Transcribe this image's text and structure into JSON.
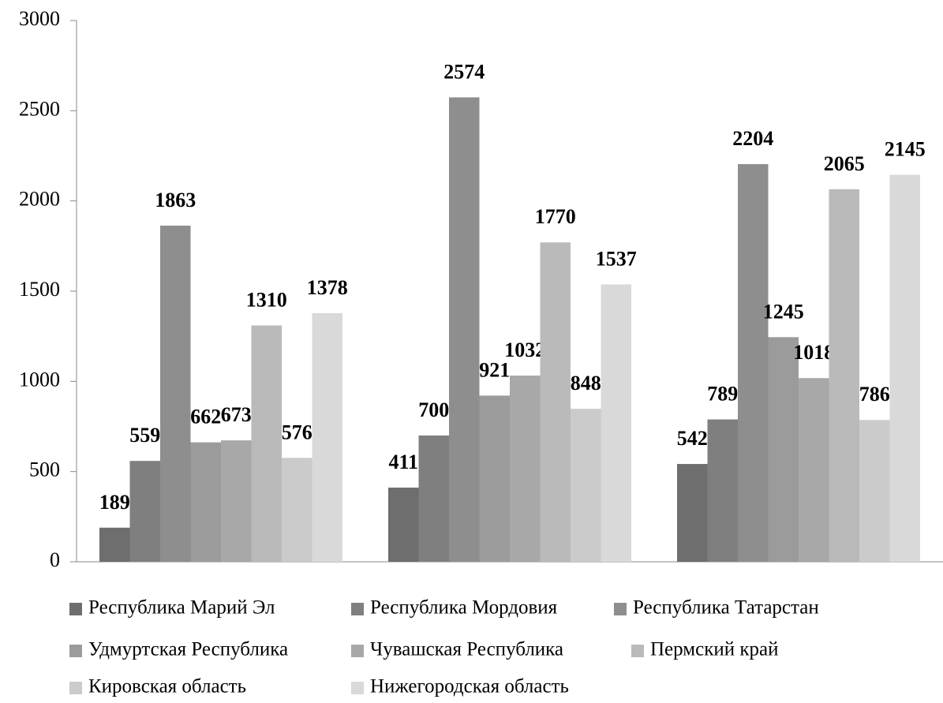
{
  "chart_data": {
    "type": "bar",
    "categories": [
      null,
      null,
      null
    ],
    "series": [
      {
        "name": "Республика Марий Эл",
        "color": "#6e6e6e",
        "values": [
          189,
          411,
          542
        ]
      },
      {
        "name": "Республика Мордовия",
        "color": "#7f7f7f",
        "values": [
          559,
          700,
          789
        ]
      },
      {
        "name": "Республика Татарстан",
        "color": "#8e8e8e",
        "values": [
          1863,
          2574,
          2204
        ]
      },
      {
        "name": "Удмуртская Республика",
        "color": "#9b9b9b",
        "values": [
          662,
          921,
          1245
        ]
      },
      {
        "name": "Чувашская Республика",
        "color": "#a8a8a8",
        "values": [
          673,
          1032,
          1018
        ]
      },
      {
        "name": "Пермский край",
        "color": "#bababa",
        "values": [
          1310,
          1770,
          2065
        ]
      },
      {
        "name": "Кировская область",
        "color": "#cbcbcb",
        "values": [
          576,
          848,
          786
        ]
      },
      {
        "name": "Нижегородская область",
        "color": "#d9d9d9",
        "values": [
          1378,
          1537,
          2145
        ]
      }
    ],
    "ylim": [
      0,
      3000
    ],
    "yticks": [
      0,
      500,
      1000,
      1500,
      2000,
      2500,
      3000
    ],
    "grid": false,
    "legend": "bottom"
  }
}
